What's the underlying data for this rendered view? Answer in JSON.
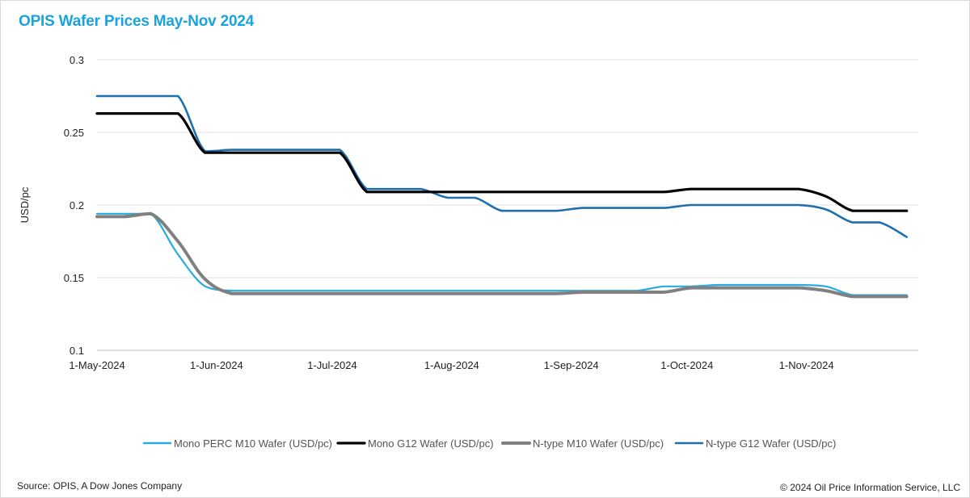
{
  "title": "OPIS Wafer Prices May-Nov 2024",
  "footer": {
    "source": "Source: OPIS, A Dow Jones Company",
    "copyright": "© 2024 Oil Price Information Service, LLC"
  },
  "chart_data": {
    "type": "line",
    "title": "OPIS Wafer Prices May-Nov 2024",
    "xlabel": "",
    "ylabel": "USD/pc",
    "ylim": [
      0.1,
      0.3
    ],
    "yticks": [
      0.1,
      0.15,
      0.2,
      0.25,
      0.3
    ],
    "ytick_labels": [
      "0.1",
      "0.15",
      "0.2",
      "0.25",
      "0.3"
    ],
    "xlim": [
      "2024-05-01",
      "2024-11-30"
    ],
    "xticks": [
      "2024-05-01",
      "2024-06-01",
      "2024-07-01",
      "2024-08-01",
      "2024-09-01",
      "2024-10-01",
      "2024-11-01"
    ],
    "xtick_labels": [
      "1-May-2024",
      "1-Jun-2024",
      "1-Jul-2024",
      "1-Aug-2024",
      "1-Sep-2024",
      "1-Oct-2024",
      "1-Nov-2024"
    ],
    "grid": "horizontal",
    "legend_position": "bottom",
    "x": [
      "2024-05-01",
      "2024-05-08",
      "2024-05-15",
      "2024-05-22",
      "2024-05-29",
      "2024-06-05",
      "2024-06-12",
      "2024-06-19",
      "2024-06-26",
      "2024-07-03",
      "2024-07-10",
      "2024-07-17",
      "2024-07-24",
      "2024-07-31",
      "2024-08-07",
      "2024-08-14",
      "2024-08-21",
      "2024-08-28",
      "2024-09-04",
      "2024-09-11",
      "2024-09-18",
      "2024-09-25",
      "2024-10-02",
      "2024-10-09",
      "2024-10-16",
      "2024-10-23",
      "2024-10-30",
      "2024-11-06",
      "2024-11-13",
      "2024-11-20",
      "2024-11-27"
    ],
    "series": [
      {
        "name": "Mono PERC M10 Wafer (USD/pc)",
        "color": "#29abe2",
        "width": 2.2,
        "values": [
          0.194,
          0.194,
          0.194,
          0.166,
          0.144,
          0.141,
          0.141,
          0.141,
          0.141,
          0.141,
          0.141,
          0.141,
          0.141,
          0.141,
          0.141,
          0.141,
          0.141,
          0.141,
          0.141,
          0.141,
          0.141,
          0.144,
          0.144,
          0.145,
          0.145,
          0.145,
          0.145,
          0.144,
          0.138,
          0.138,
          0.138
        ]
      },
      {
        "name": "Mono G12 Wafer (USD/pc)",
        "color": "#000000",
        "width": 3.2,
        "values": [
          0.263,
          0.263,
          0.263,
          0.263,
          0.236,
          0.236,
          0.236,
          0.236,
          0.236,
          0.236,
          0.209,
          0.209,
          0.209,
          0.209,
          0.209,
          0.209,
          0.209,
          0.209,
          0.209,
          0.209,
          0.209,
          0.209,
          0.211,
          0.211,
          0.211,
          0.211,
          0.211,
          0.206,
          0.196,
          0.196,
          0.196
        ]
      },
      {
        "name": "N-type M10 Wafer (USD/pc)",
        "color": "#808080",
        "width": 4,
        "values": [
          0.192,
          0.192,
          0.194,
          0.175,
          0.149,
          0.139,
          0.139,
          0.139,
          0.139,
          0.139,
          0.139,
          0.139,
          0.139,
          0.139,
          0.139,
          0.139,
          0.139,
          0.139,
          0.14,
          0.14,
          0.14,
          0.14,
          0.143,
          0.143,
          0.143,
          0.143,
          0.143,
          0.141,
          0.137,
          0.137,
          0.137
        ]
      },
      {
        "name": "N-type G12 Wafer (USD/pc)",
        "color": "#1f6fad",
        "width": 2.6,
        "values": [
          0.275,
          0.275,
          0.275,
          0.275,
          0.237,
          0.238,
          0.238,
          0.238,
          0.238,
          0.238,
          0.211,
          0.211,
          0.211,
          0.205,
          0.205,
          0.196,
          0.196,
          0.196,
          0.198,
          0.198,
          0.198,
          0.198,
          0.2,
          0.2,
          0.2,
          0.2,
          0.2,
          0.197,
          0.188,
          0.188,
          0.178
        ]
      }
    ]
  }
}
